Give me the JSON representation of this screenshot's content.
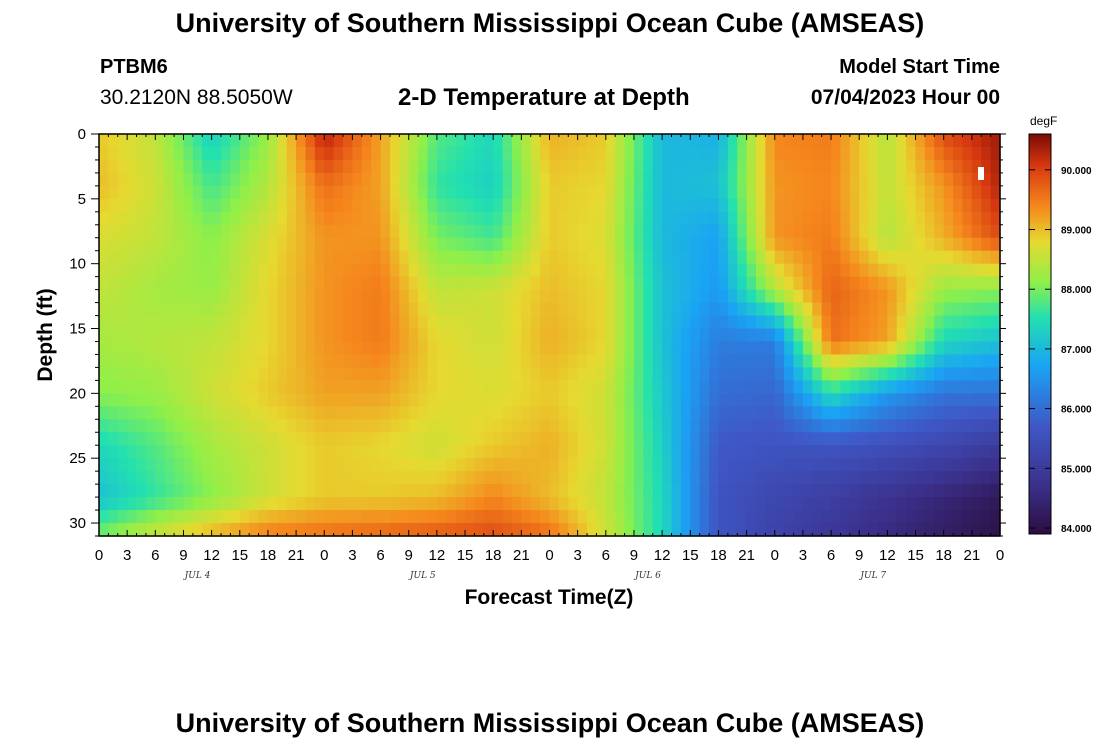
{
  "header": {
    "title": "University of Southern Mississippi Ocean Cube (AMSEAS)",
    "station_id": "PTBM6",
    "station_coords": "30.2120N  88.5050W",
    "plot_title": "2-D Temperature at Depth",
    "start_label": "Model Start Time",
    "start_value": "07/04/2023 Hour 00"
  },
  "footer": {
    "title": "University of Southern Mississippi Ocean Cube (AMSEAS)"
  },
  "chart_data": {
    "type": "heatmap",
    "xlabel": "Forecast Time(Z)",
    "ylabel": "Depth (ft)",
    "x_ticks": [
      "0",
      "3",
      "6",
      "9",
      "12",
      "15",
      "18",
      "21",
      "0",
      "3",
      "6",
      "9",
      "12",
      "15",
      "18",
      "21",
      "0",
      "3",
      "6",
      "9",
      "12",
      "15",
      "18",
      "21",
      "0",
      "3",
      "6",
      "9",
      "12",
      "15",
      "18",
      "21",
      "0"
    ],
    "x_range_hours": [
      0,
      96
    ],
    "y_ticks": [
      "0",
      "5",
      "10",
      "15",
      "20",
      "25",
      "30"
    ],
    "y_range_ft": [
      0,
      31
    ],
    "y_inverted": true,
    "day_labels": [
      "JUL 4",
      "JUL 5",
      "JUL 6",
      "JUL 7"
    ],
    "colorbar": {
      "unit": "degF",
      "range": [
        83.9,
        90.6
      ],
      "ticks": [
        "84.000",
        "85.000",
        "86.000",
        "87.000",
        "88.000",
        "89.000",
        "90.000"
      ]
    },
    "depth_levels_ft": [
      0,
      4,
      8,
      12,
      16,
      20,
      24,
      28,
      31
    ],
    "time_hours": [
      0,
      6,
      12,
      18,
      24,
      30,
      36,
      42,
      48,
      54,
      60,
      66,
      72,
      78,
      84,
      90,
      96
    ],
    "temperature_degF": [
      [
        88.9,
        88.5,
        87.3,
        88.2,
        90.3,
        89.2,
        87.8,
        87.4,
        89.1,
        88.9,
        87.0,
        86.9,
        89.4,
        89.5,
        88.4,
        89.9,
        90.4
      ],
      [
        89.0,
        88.6,
        87.7,
        88.4,
        89.6,
        89.2,
        87.6,
        87.3,
        88.9,
        88.8,
        87.0,
        87.1,
        89.3,
        89.4,
        88.5,
        89.3,
        90.3
      ],
      [
        88.7,
        88.5,
        88.1,
        88.7,
        89.3,
        89.3,
        88.0,
        87.7,
        88.9,
        88.7,
        87.0,
        86.7,
        89.3,
        89.5,
        88.4,
        89.1,
        89.9
      ],
      [
        88.5,
        88.3,
        88.2,
        88.8,
        89.3,
        89.5,
        88.5,
        88.6,
        89.0,
        88.8,
        87.1,
        86.6,
        88.4,
        89.7,
        89.3,
        88.2,
        88.1
      ],
      [
        88.3,
        88.4,
        88.5,
        88.8,
        89.3,
        89.5,
        88.8,
        88.6,
        89.1,
        88.8,
        87.1,
        86.2,
        86.2,
        89.6,
        89.2,
        87.4,
        87.1
      ],
      [
        88.1,
        88.2,
        88.6,
        88.9,
        89.2,
        89.2,
        88.8,
        88.7,
        88.9,
        88.6,
        87.2,
        86.0,
        85.9,
        87.5,
        86.6,
        86.1,
        86.1
      ],
      [
        87.4,
        87.8,
        88.3,
        88.6,
        88.9,
        88.8,
        88.6,
        88.9,
        89.1,
        88.6,
        87.3,
        85.7,
        85.6,
        85.6,
        85.5,
        85.3,
        85.0
      ],
      [
        87.1,
        87.6,
        88.1,
        88.6,
        88.9,
        88.9,
        89.0,
        89.4,
        89.0,
        88.5,
        87.4,
        85.6,
        85.3,
        85.1,
        84.8,
        84.5,
        84.2
      ],
      [
        88.0,
        88.6,
        89.1,
        89.5,
        89.6,
        89.7,
        89.8,
        89.9,
        89.6,
        88.6,
        87.4,
        85.6,
        85.2,
        84.9,
        84.6,
        84.3,
        84.0
      ]
    ]
  }
}
